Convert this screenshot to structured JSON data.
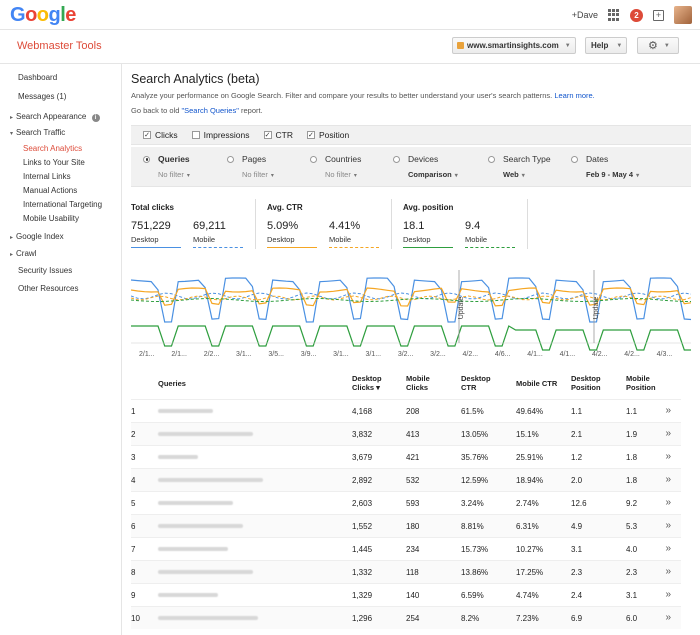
{
  "topbar": {
    "logo_letters": [
      {
        "ch": "G",
        "color": "#4285f4"
      },
      {
        "ch": "o",
        "color": "#ea4335"
      },
      {
        "ch": "o",
        "color": "#fbbc05"
      },
      {
        "ch": "g",
        "color": "#4285f4"
      },
      {
        "ch": "l",
        "color": "#34a853"
      },
      {
        "ch": "e",
        "color": "#ea4335"
      }
    ],
    "user_label": "+Dave",
    "notification_count": "2",
    "share_glyph": "+"
  },
  "header": {
    "product_title": "Webmaster Tools",
    "site": "www.smartinsights.com",
    "help_label": "Help",
    "gear_glyph": "⚙"
  },
  "sidebar": {
    "items": [
      {
        "label": "Dashboard"
      },
      {
        "label": "Messages (1)"
      },
      {
        "label": "Search Appearance"
      },
      {
        "label": "Search Traffic"
      },
      {
        "label": "Search Analytics"
      },
      {
        "label": "Links to Your Site"
      },
      {
        "label": "Internal Links"
      },
      {
        "label": "Manual Actions"
      },
      {
        "label": "International Targeting"
      },
      {
        "label": "Mobile Usability"
      },
      {
        "label": "Google Index"
      },
      {
        "label": "Crawl"
      },
      {
        "label": "Security Issues"
      },
      {
        "label": "Other Resources"
      }
    ],
    "info_glyph": "i",
    "arrow_right": "▸",
    "arrow_down": "▾"
  },
  "page": {
    "title": "Search Analytics (beta)",
    "description": "Analyze your performance on Google Search. Filter and compare your results to better understand your user's search patterns.",
    "learn_more": "Learn more.",
    "goback_prefix": "Go back to old ",
    "goback_link": "\"Search Queries\"",
    "goback_suffix": " report."
  },
  "metrics": [
    {
      "label": "Clicks",
      "checked": true
    },
    {
      "label": "Impressions",
      "checked": false
    },
    {
      "label": "CTR",
      "checked": true
    },
    {
      "label": "Position",
      "checked": true
    }
  ],
  "groups": [
    {
      "label": "Queries",
      "sub": "No filter",
      "selected": true
    },
    {
      "label": "Pages",
      "sub": "No filter",
      "selected": false
    },
    {
      "label": "Countries",
      "sub": "No filter",
      "selected": false
    },
    {
      "label": "Devices",
      "sub": "Comparison",
      "selected": false
    },
    {
      "label": "Search Type",
      "sub": "Web",
      "selected": false
    },
    {
      "label": "Dates",
      "sub": "Feb 9 - May 4",
      "selected": false
    }
  ],
  "stats": [
    {
      "title": "Total clicks",
      "desktop": "751,229",
      "mobile": "69,211",
      "desktop_label": "Desktop",
      "mobile_label": "Mobile",
      "color": "#4a90e2"
    },
    {
      "title": "Avg. CTR",
      "desktop": "5.09%",
      "mobile": "4.41%",
      "desktop_label": "Desktop",
      "mobile_label": "Mobile",
      "color": "#f5a623"
    },
    {
      "title": "Avg. position",
      "desktop": "18.1",
      "mobile": "9.4",
      "desktop_label": "Desktop",
      "mobile_label": "Mobile",
      "color": "#2e9e3e"
    }
  ],
  "chart": {
    "tick_labels": [
      "2/1...",
      "2/1...",
      "2/2...",
      "3/1...",
      "3/5...",
      "3/9...",
      "3/1...",
      "3/1...",
      "3/2...",
      "3/2...",
      "4/2...",
      "4/6...",
      "4/1...",
      "4/1...",
      "4/2...",
      "4/2...",
      "4/3..."
    ],
    "annotations": [
      "Update",
      "Update"
    ],
    "colors": {
      "clicks": "#4a90e2",
      "ctr": "#f5a623",
      "position": "#2e9e3e"
    }
  },
  "table": {
    "headers": {
      "queries": "Queries",
      "desktop_clicks_1": "Desktop",
      "desktop_clicks_2": "Clicks ▾",
      "mobile_clicks_1": "Mobile",
      "mobile_clicks_2": "Clicks",
      "desktop_ctr_1": "Desktop",
      "desktop_ctr_2": "CTR",
      "mobile_ctr": "Mobile CTR",
      "desktop_pos_1": "Desktop",
      "desktop_pos_2": "Position",
      "mobile_pos_1": "Mobile",
      "mobile_pos_2": "Position"
    },
    "rows": [
      {
        "n": "1",
        "dc": "4,168",
        "mc": "208",
        "dctr": "61.5%",
        "mctr": "49.64%",
        "dp": "1.1",
        "mp": "1.1"
      },
      {
        "n": "2",
        "dc": "3,832",
        "mc": "413",
        "dctr": "13.05%",
        "mctr": "15.1%",
        "dp": "2.1",
        "mp": "1.9"
      },
      {
        "n": "3",
        "dc": "3,679",
        "mc": "421",
        "dctr": "35.76%",
        "mctr": "25.91%",
        "dp": "1.2",
        "mp": "1.8"
      },
      {
        "n": "4",
        "dc": "2,892",
        "mc": "532",
        "dctr": "12.59%",
        "mctr": "18.94%",
        "dp": "2.0",
        "mp": "1.8"
      },
      {
        "n": "5",
        "dc": "2,603",
        "mc": "593",
        "dctr": "3.24%",
        "mctr": "2.74%",
        "dp": "12.6",
        "mp": "9.2"
      },
      {
        "n": "6",
        "dc": "1,552",
        "mc": "180",
        "dctr": "8.81%",
        "mctr": "6.31%",
        "dp": "4.9",
        "mp": "5.3"
      },
      {
        "n": "7",
        "dc": "1,445",
        "mc": "234",
        "dctr": "15.73%",
        "mctr": "10.27%",
        "dp": "3.1",
        "mp": "4.0"
      },
      {
        "n": "8",
        "dc": "1,332",
        "mc": "118",
        "dctr": "13.86%",
        "mctr": "17.25%",
        "dp": "2.3",
        "mp": "2.3"
      },
      {
        "n": "9",
        "dc": "1,329",
        "mc": "140",
        "dctr": "6.59%",
        "mctr": "4.74%",
        "dp": "2.4",
        "mp": "3.1"
      },
      {
        "n": "10",
        "dc": "1,296",
        "mc": "254",
        "dctr": "8.2%",
        "mctr": "7.23%",
        "dp": "6.9",
        "mp": "6.0"
      }
    ],
    "chevron": "»"
  }
}
